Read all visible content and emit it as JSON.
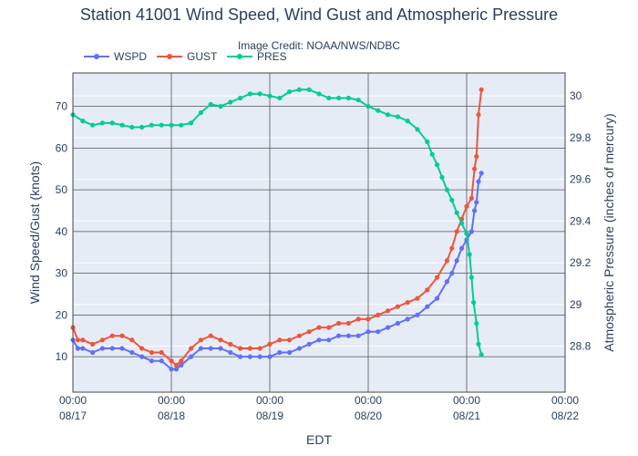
{
  "chart_data": {
    "type": "line",
    "title": "Station 41001 Wind Speed, Wind Gust and Atmospheric Pressure",
    "credit": "Image Credit: NOAA/NWS/NDBC",
    "xlabel": "EDT",
    "ylabel": "Wind Speed/Gust (knots)",
    "y2label": "Atmospheric Pressure (inches of mercury)",
    "xlim": [
      0,
      5
    ],
    "ylim": [
      1.5,
      78
    ],
    "y2lim": [
      28.58,
      30.11
    ],
    "x_ticks": [
      {
        "value": 0,
        "time": "00:00",
        "date": "08/17"
      },
      {
        "value": 1,
        "time": "00:00",
        "date": "08/18"
      },
      {
        "value": 2,
        "time": "00:00",
        "date": "08/19"
      },
      {
        "value": 3,
        "time": "00:00",
        "date": "08/20"
      },
      {
        "value": 4,
        "time": "00:00",
        "date": "08/21"
      },
      {
        "value": 5,
        "time": "00:00",
        "date": "08/22"
      }
    ],
    "y_ticks": [
      10,
      20,
      30,
      40,
      50,
      60,
      70
    ],
    "y2_ticks": [
      {
        "value": 28.8,
        "label": "28.8"
      },
      {
        "value": 29.0,
        "label": "29"
      },
      {
        "value": 29.2,
        "label": "29.2"
      },
      {
        "value": 29.4,
        "label": "29.4"
      },
      {
        "value": 29.6,
        "label": "29.6"
      },
      {
        "value": 29.8,
        "label": "29.8"
      },
      {
        "value": 30.0,
        "label": "30"
      }
    ],
    "series": [
      {
        "name": "WSPD",
        "axis": "left",
        "color": "#636efa",
        "x": [
          0.0,
          0.05,
          0.1,
          0.2,
          0.3,
          0.4,
          0.5,
          0.6,
          0.7,
          0.8,
          0.9,
          1.0,
          1.05,
          1.1,
          1.2,
          1.3,
          1.4,
          1.5,
          1.6,
          1.7,
          1.8,
          1.9,
          2.0,
          2.1,
          2.2,
          2.3,
          2.4,
          2.5,
          2.6,
          2.7,
          2.8,
          2.9,
          3.0,
          3.1,
          3.2,
          3.3,
          3.4,
          3.5,
          3.6,
          3.7,
          3.8,
          3.85,
          3.9,
          3.95,
          4.0,
          4.05,
          4.08,
          4.1,
          4.12,
          4.15
        ],
        "values": [
          14,
          12,
          12,
          11,
          12,
          12,
          12,
          11,
          10,
          9,
          9,
          7,
          7,
          8,
          10,
          12,
          12,
          12,
          11,
          10,
          10,
          10,
          10,
          11,
          11,
          12,
          13,
          14,
          14,
          15,
          15,
          15,
          16,
          16,
          17,
          18,
          19,
          20,
          22,
          24,
          28,
          30,
          33,
          36,
          38,
          40,
          45,
          47,
          52,
          54
        ]
      },
      {
        "name": "GUST",
        "axis": "left",
        "color": "#ef553b",
        "x": [
          0.0,
          0.05,
          0.1,
          0.2,
          0.3,
          0.4,
          0.5,
          0.6,
          0.7,
          0.8,
          0.9,
          1.0,
          1.05,
          1.1,
          1.2,
          1.3,
          1.4,
          1.5,
          1.6,
          1.7,
          1.8,
          1.9,
          2.0,
          2.1,
          2.2,
          2.3,
          2.4,
          2.5,
          2.6,
          2.7,
          2.8,
          2.9,
          3.0,
          3.1,
          3.2,
          3.3,
          3.4,
          3.5,
          3.6,
          3.7,
          3.8,
          3.85,
          3.9,
          3.95,
          4.0,
          4.05,
          4.08,
          4.1,
          4.12,
          4.15
        ],
        "values": [
          17,
          14,
          14,
          13,
          14,
          15,
          15,
          14,
          12,
          11,
          11,
          9,
          8,
          9,
          12,
          14,
          15,
          14,
          13,
          12,
          12,
          12,
          13,
          14,
          14,
          15,
          16,
          17,
          17,
          18,
          18,
          19,
          19,
          20,
          21,
          22,
          23,
          24,
          26,
          29,
          33,
          36,
          40,
          43,
          46,
          48,
          55,
          58,
          68,
          74
        ]
      },
      {
        "name": "PRES",
        "axis": "right",
        "color": "#00cc96",
        "x": [
          0.0,
          0.1,
          0.2,
          0.3,
          0.4,
          0.5,
          0.6,
          0.7,
          0.8,
          0.9,
          1.0,
          1.1,
          1.2,
          1.3,
          1.4,
          1.5,
          1.6,
          1.7,
          1.8,
          1.9,
          2.0,
          2.1,
          2.2,
          2.3,
          2.4,
          2.5,
          2.6,
          2.7,
          2.8,
          2.9,
          3.0,
          3.1,
          3.2,
          3.3,
          3.4,
          3.5,
          3.6,
          3.65,
          3.7,
          3.75,
          3.8,
          3.85,
          3.9,
          3.95,
          4.0,
          4.03,
          4.05,
          4.07,
          4.1,
          4.12,
          4.15
        ],
        "values": [
          29.91,
          29.88,
          29.86,
          29.87,
          29.87,
          29.86,
          29.85,
          29.85,
          29.86,
          29.86,
          29.86,
          29.86,
          29.87,
          29.92,
          29.96,
          29.95,
          29.97,
          29.99,
          30.01,
          30.01,
          30.0,
          29.99,
          30.02,
          30.03,
          30.03,
          30.01,
          29.99,
          29.99,
          29.99,
          29.98,
          29.95,
          29.93,
          29.91,
          29.9,
          29.88,
          29.84,
          29.78,
          29.72,
          29.67,
          29.61,
          29.55,
          29.5,
          29.44,
          29.39,
          29.34,
          29.24,
          29.13,
          29.01,
          28.91,
          28.81,
          28.76
        ]
      }
    ]
  }
}
